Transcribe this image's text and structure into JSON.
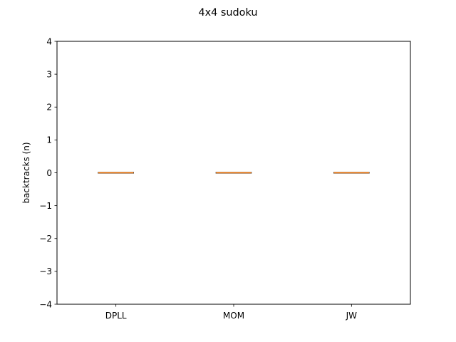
{
  "chart_data": {
    "type": "box",
    "title": "4x4 sudoku",
    "xlabel": "",
    "ylabel": "backtracks (n)",
    "ylim": [
      -4,
      4
    ],
    "yticks": [
      -4,
      -3,
      -2,
      -1,
      0,
      1,
      2,
      3,
      4
    ],
    "ytick_labels": [
      "−4",
      "−3",
      "−2",
      "−1",
      "0",
      "1",
      "2",
      "3",
      "4"
    ],
    "categories": [
      "DPLL",
      "MOM",
      "JW"
    ],
    "boxes": [
      {
        "category": "DPLL",
        "min": 0,
        "q1": 0,
        "median": 0,
        "q3": 0,
        "max": 0
      },
      {
        "category": "MOM",
        "min": 0,
        "q1": 0,
        "median": 0,
        "q3": 0,
        "max": 0
      },
      {
        "category": "JW",
        "min": 0,
        "q1": 0,
        "median": 0,
        "q3": 0,
        "max": 0
      }
    ],
    "grid": false,
    "colors": {
      "box": "#000000",
      "median": "#ff7f0e",
      "axes": "#000000"
    }
  }
}
